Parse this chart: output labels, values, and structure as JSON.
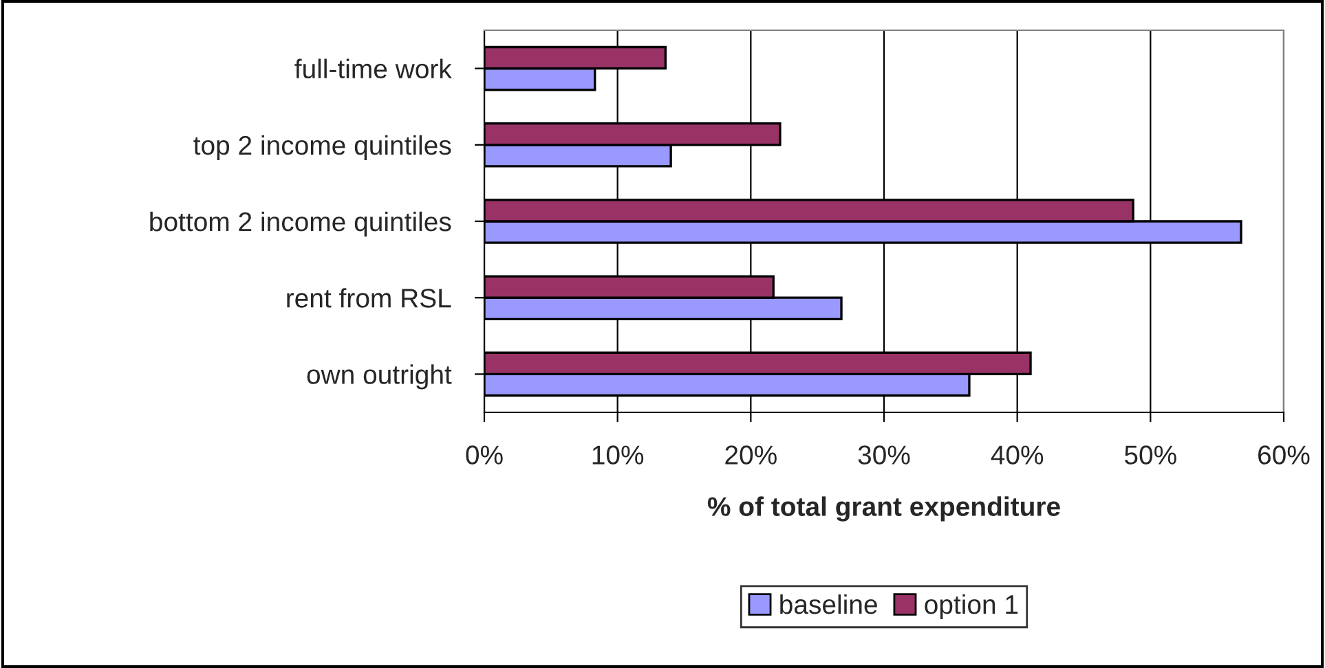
{
  "chart_data": {
    "type": "bar",
    "orientation": "horizontal",
    "xlabel": "% of total grant expenditure",
    "categories": [
      "full-time work",
      "top 2 income quintiles",
      "bottom 2 income quintiles",
      "rent from RSL",
      "own outright"
    ],
    "series": [
      {
        "name": "baseline",
        "color": "#9999ff",
        "values": [
          8.3,
          14.0,
          56.8,
          26.8,
          36.4
        ]
      },
      {
        "name": "option 1",
        "color": "#993366",
        "values": [
          13.6,
          22.2,
          48.7,
          21.7,
          41.0
        ]
      }
    ],
    "xlim": [
      0,
      60
    ],
    "xticks": [
      {
        "value": 0,
        "label": "0%"
      },
      {
        "value": 10,
        "label": "10%"
      },
      {
        "value": 20,
        "label": "20%"
      },
      {
        "value": 30,
        "label": "30%"
      },
      {
        "value": 40,
        "label": "40%"
      },
      {
        "value": 50,
        "label": "50%"
      },
      {
        "value": 60,
        "label": "60%"
      }
    ],
    "grid": "x",
    "legend": "bottom"
  }
}
